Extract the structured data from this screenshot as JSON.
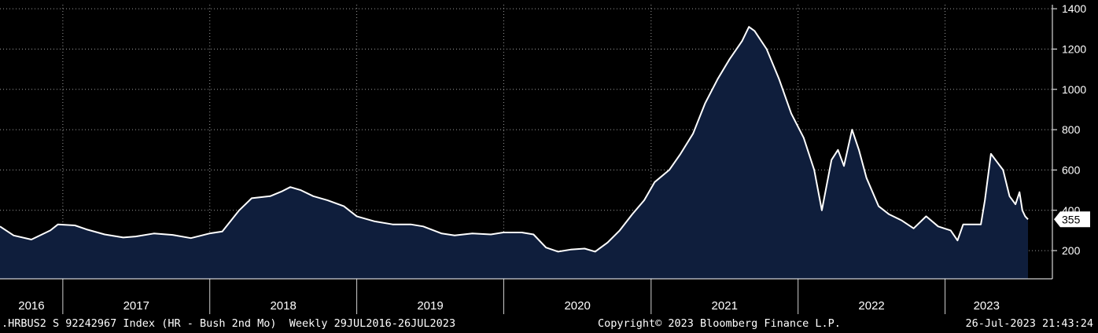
{
  "chart_data": {
    "type": "area",
    "frequency": "weekly",
    "x_start": "2016-07-29",
    "x_end": "2023-07-26",
    "ylim": [
      60,
      1420
    ],
    "yticks": [
      200,
      400,
      600,
      800,
      1000,
      1200,
      1400
    ],
    "grid": true,
    "grid_style": "dotted",
    "x_period_labels": [
      "2016",
      "2017",
      "2018",
      "2019",
      "2020",
      "2021",
      "2022",
      "2023"
    ],
    "last_value": 355,
    "colors": {
      "background": "#000000",
      "fill": "#0f1e3c",
      "line": "#ffffff",
      "grid": "#9a9a9a"
    },
    "series": [
      {
        "points": [
          [
            "2016-07-29",
            320
          ],
          [
            "2016-09-01",
            275
          ],
          [
            "2016-10-15",
            255
          ],
          [
            "2016-12-01",
            300
          ],
          [
            "2016-12-20",
            330
          ],
          [
            "2017-01-31",
            325
          ],
          [
            "2017-03-01",
            305
          ],
          [
            "2017-04-15",
            280
          ],
          [
            "2017-05-31",
            265
          ],
          [
            "2017-07-01",
            270
          ],
          [
            "2017-08-15",
            285
          ],
          [
            "2017-10-01",
            278
          ],
          [
            "2017-11-15",
            262
          ],
          [
            "2017-12-31",
            285
          ],
          [
            "2018-02-01",
            295
          ],
          [
            "2018-03-15",
            400
          ],
          [
            "2018-04-15",
            460
          ],
          [
            "2018-05-31",
            470
          ],
          [
            "2018-06-30",
            495
          ],
          [
            "2018-07-20",
            515
          ],
          [
            "2018-08-15",
            500
          ],
          [
            "2018-09-15",
            470
          ],
          [
            "2018-10-20",
            450
          ],
          [
            "2018-11-30",
            420
          ],
          [
            "2019-01-01",
            370
          ],
          [
            "2019-02-15",
            345
          ],
          [
            "2019-03-31",
            330
          ],
          [
            "2019-05-15",
            330
          ],
          [
            "2019-06-15",
            320
          ],
          [
            "2019-07-31",
            285
          ],
          [
            "2019-09-01",
            275
          ],
          [
            "2019-10-15",
            285
          ],
          [
            "2019-11-30",
            280
          ],
          [
            "2019-12-31",
            290
          ],
          [
            "2020-02-15",
            290
          ],
          [
            "2020-03-15",
            280
          ],
          [
            "2020-04-15",
            215
          ],
          [
            "2020-05-15",
            195
          ],
          [
            "2020-06-15",
            205
          ],
          [
            "2020-07-20",
            210
          ],
          [
            "2020-08-15",
            195
          ],
          [
            "2020-09-15",
            240
          ],
          [
            "2020-10-15",
            300
          ],
          [
            "2020-11-15",
            380
          ],
          [
            "2020-12-15",
            450
          ],
          [
            "2021-01-10",
            540
          ],
          [
            "2021-02-15",
            600
          ],
          [
            "2021-03-15",
            680
          ],
          [
            "2021-04-15",
            780
          ],
          [
            "2021-05-15",
            930
          ],
          [
            "2021-06-15",
            1050
          ],
          [
            "2021-07-15",
            1150
          ],
          [
            "2021-08-15",
            1240
          ],
          [
            "2021-09-01",
            1310
          ],
          [
            "2021-09-15",
            1290
          ],
          [
            "2021-10-15",
            1200
          ],
          [
            "2021-11-15",
            1050
          ],
          [
            "2021-12-15",
            880
          ],
          [
            "2022-01-15",
            760
          ],
          [
            "2022-02-10",
            600
          ],
          [
            "2022-03-01",
            400
          ],
          [
            "2022-03-25",
            650
          ],
          [
            "2022-04-10",
            700
          ],
          [
            "2022-04-25",
            620
          ],
          [
            "2022-05-15",
            800
          ],
          [
            "2022-06-01",
            700
          ],
          [
            "2022-06-20",
            560
          ],
          [
            "2022-07-20",
            420
          ],
          [
            "2022-08-15",
            380
          ],
          [
            "2022-09-15",
            350
          ],
          [
            "2022-10-15",
            310
          ],
          [
            "2022-11-15",
            370
          ],
          [
            "2022-12-15",
            320
          ],
          [
            "2023-01-15",
            300
          ],
          [
            "2023-02-01",
            250
          ],
          [
            "2023-02-15",
            330
          ],
          [
            "2023-03-15",
            330
          ],
          [
            "2023-03-31",
            330
          ],
          [
            "2023-04-10",
            450
          ],
          [
            "2023-04-25",
            680
          ],
          [
            "2023-05-10",
            640
          ],
          [
            "2023-05-25",
            600
          ],
          [
            "2023-06-10",
            470
          ],
          [
            "2023-06-25",
            430
          ],
          [
            "2023-07-05",
            490
          ],
          [
            "2023-07-12",
            400
          ],
          [
            "2023-07-19",
            370
          ],
          [
            "2023-07-26",
            355
          ]
        ]
      }
    ]
  },
  "footer": {
    "left": ".HRBUS2 S 92242967 Index (HR - Bush 2nd Mo)  Weekly 29JUL2016-26JUL2023",
    "middle": "Copyright© 2023 Bloomberg Finance L.P.",
    "right": "26-Jul-2023 21:43:24"
  }
}
